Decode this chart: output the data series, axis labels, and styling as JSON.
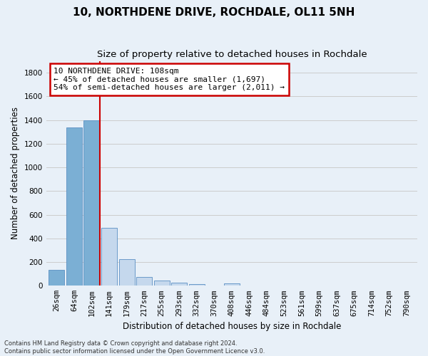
{
  "title": "10, NORTHDENE DRIVE, ROCHDALE, OL11 5NH",
  "subtitle": "Size of property relative to detached houses in Rochdale",
  "xlabel": "Distribution of detached houses by size in Rochdale",
  "ylabel": "Number of detached properties",
  "categories": [
    "26sqm",
    "64sqm",
    "102sqm",
    "141sqm",
    "179sqm",
    "217sqm",
    "255sqm",
    "293sqm",
    "332sqm",
    "370sqm",
    "408sqm",
    "446sqm",
    "484sqm",
    "523sqm",
    "561sqm",
    "599sqm",
    "637sqm",
    "675sqm",
    "714sqm",
    "752sqm",
    "790sqm"
  ],
  "values": [
    135,
    1340,
    1400,
    490,
    225,
    75,
    45,
    28,
    15,
    0,
    18,
    0,
    0,
    0,
    0,
    0,
    0,
    0,
    0,
    0,
    0
  ],
  "bar_color_left": "#7bafd4",
  "bar_color_right": "#c5d8ed",
  "bar_edge_color": "#5a8fc3",
  "property_line_index": 2,
  "property_line_color": "#cc0000",
  "annotation_text": "10 NORTHDENE DRIVE: 108sqm\n← 45% of detached houses are smaller (1,697)\n54% of semi-detached houses are larger (2,011) →",
  "annotation_box_edge_color": "#cc0000",
  "annotation_bg_color": "#ffffff",
  "ylim": [
    0,
    1900
  ],
  "yticks": [
    0,
    200,
    400,
    600,
    800,
    1000,
    1200,
    1400,
    1600,
    1800
  ],
  "grid_color": "#cccccc",
  "background_color": "#e8f0f8",
  "footnote": "Contains HM Land Registry data © Crown copyright and database right 2024.\nContains public sector information licensed under the Open Government Licence v3.0.",
  "title_fontsize": 11,
  "subtitle_fontsize": 9.5,
  "axis_label_fontsize": 8.5,
  "tick_fontsize": 7.5,
  "annotation_fontsize": 8
}
